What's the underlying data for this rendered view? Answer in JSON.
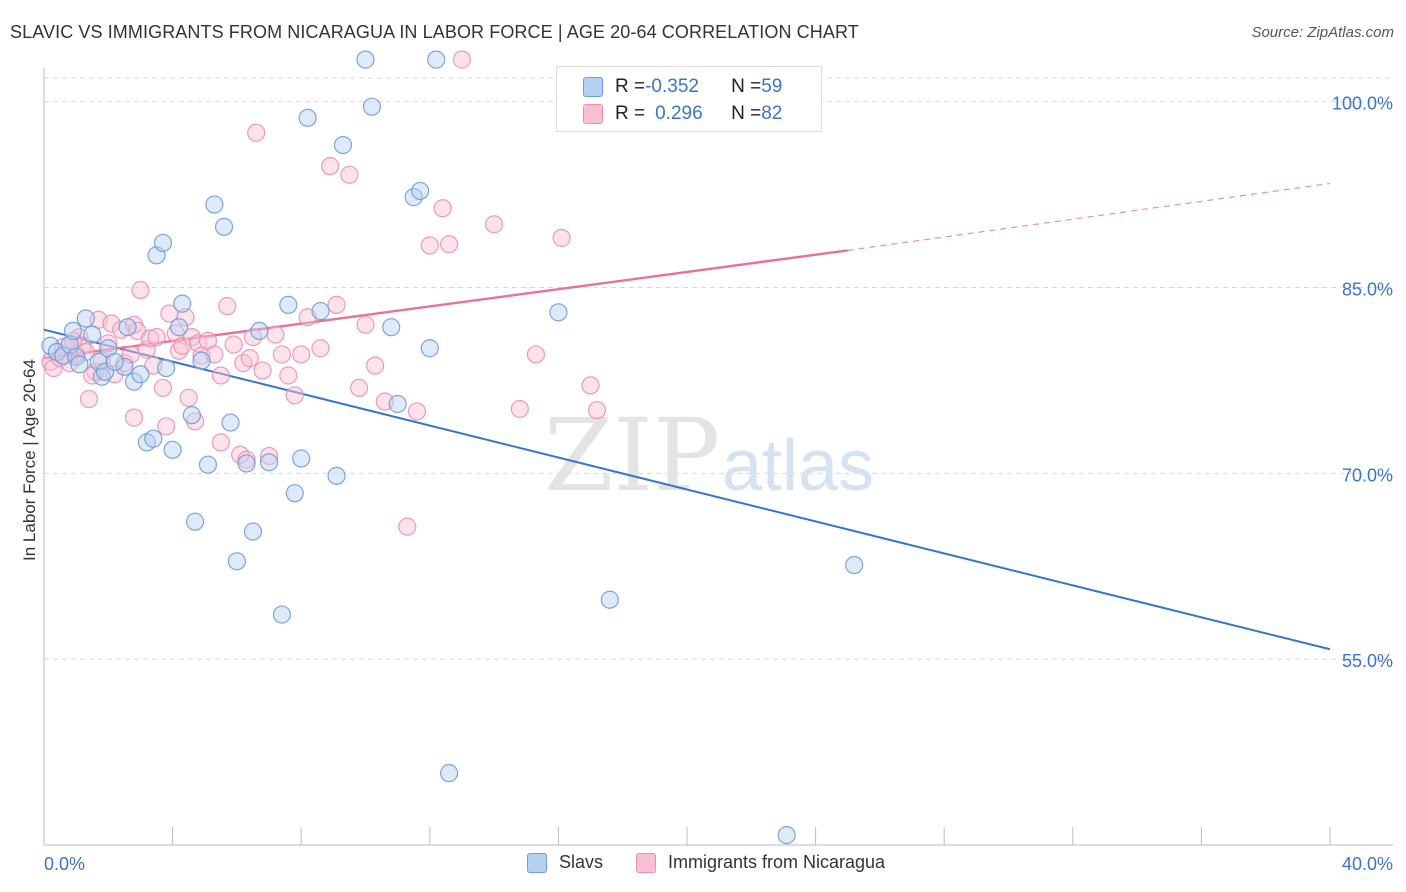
{
  "title": "SLAVIC VS IMMIGRANTS FROM NICARAGUA IN LABOR FORCE | AGE 20-64 CORRELATION CHART",
  "source": "Source: ZipAtlas.com",
  "watermark": {
    "zip": "ZIP",
    "atlas": "atlas"
  },
  "legend": {
    "rows": [
      {
        "r_label": "R = ",
        "r_value": "-0.352",
        "n_label": "N = ",
        "n_value": "59"
      },
      {
        "r_label": "R = ",
        "r_value": "0.296",
        "n_label": "N = ",
        "n_value": "82"
      }
    ]
  },
  "colors": {
    "slavs_fill": "#b8d0f0",
    "slavs_stroke": "#6b9be0",
    "slavs_line": "#3a74c8",
    "nic_fill": "#f8c0d2",
    "nic_stroke": "#ec8fae",
    "nic_line": "#e8709a",
    "axis_text": "#3a74c8",
    "grid": "#d8d8d8"
  },
  "chart_data": {
    "type": "scatter",
    "title": "SLAVIC VS IMMIGRANTS FROM NICARAGUA IN LABOR FORCE | AGE 20-64 CORRELATION CHART",
    "xlabel": "",
    "ylabel": "In Labor Force | Age 20-64",
    "xlim": [
      0,
      40
    ],
    "ylim": [
      40,
      102.4
    ],
    "x_tick_labels": [
      "0.0%",
      "40.0%"
    ],
    "y_ticks": [
      55,
      70,
      85,
      100
    ],
    "y_tick_labels": [
      "55.0%",
      "70.0%",
      "85.0%",
      "100.0%"
    ],
    "grid": "horizontal dashed",
    "legend_position": "top-center",
    "series": [
      {
        "name": "Slavs",
        "color": "#6b9be0",
        "trend": {
          "x": [
            0,
            40
          ],
          "y": [
            81.6,
            55.8
          ]
        },
        "points": [
          [
            0.2,
            80.3
          ],
          [
            0.4,
            79.8
          ],
          [
            0.6,
            79.5
          ],
          [
            0.8,
            80.4
          ],
          [
            1.0,
            79.4
          ],
          [
            1.1,
            78.8
          ],
          [
            0.9,
            81.5
          ],
          [
            1.3,
            82.5
          ],
          [
            1.5,
            81.2
          ],
          [
            1.7,
            79.0
          ],
          [
            1.8,
            77.8
          ],
          [
            1.9,
            78.2
          ],
          [
            2.0,
            80.1
          ],
          [
            2.5,
            78.6
          ],
          [
            2.6,
            81.8
          ],
          [
            2.8,
            77.4
          ],
          [
            3.2,
            72.5
          ],
          [
            3.4,
            72.8
          ],
          [
            3.5,
            87.6
          ],
          [
            3.7,
            88.6
          ],
          [
            3.8,
            78.5
          ],
          [
            4.0,
            71.9
          ],
          [
            4.2,
            81.8
          ],
          [
            4.3,
            83.7
          ],
          [
            4.6,
            74.7
          ],
          [
            4.7,
            66.1
          ],
          [
            4.9,
            79.1
          ],
          [
            5.1,
            70.7
          ],
          [
            5.3,
            91.7
          ],
          [
            5.6,
            89.9
          ],
          [
            5.8,
            74.1
          ],
          [
            6.0,
            62.9
          ],
          [
            6.3,
            70.8
          ],
          [
            6.5,
            65.3
          ],
          [
            6.7,
            81.5
          ],
          [
            7.0,
            70.9
          ],
          [
            7.4,
            58.6
          ],
          [
            7.6,
            83.6
          ],
          [
            7.8,
            68.4
          ],
          [
            8.0,
            71.2
          ],
          [
            8.2,
            98.7
          ],
          [
            8.6,
            83.1
          ],
          [
            9.1,
            69.8
          ],
          [
            9.3,
            96.5
          ],
          [
            10.0,
            103.4
          ],
          [
            10.2,
            99.6
          ],
          [
            10.8,
            81.8
          ],
          [
            11.0,
            75.6
          ],
          [
            11.5,
            92.3
          ],
          [
            11.7,
            92.8
          ],
          [
            12.0,
            80.1
          ],
          [
            12.2,
            103.4
          ],
          [
            12.6,
            45.8
          ],
          [
            16.0,
            83.0
          ],
          [
            17.6,
            59.8
          ],
          [
            23.1,
            40.8
          ],
          [
            25.2,
            62.6
          ],
          [
            3.0,
            78.0
          ],
          [
            2.2,
            79.0
          ]
        ]
      },
      {
        "name": "Immigrants from Nicaragua",
        "color": "#ec8fae",
        "trend": {
          "x": [
            0,
            25
          ],
          "y": [
            79.3,
            88.0
          ]
        },
        "trend_dashed": {
          "x": [
            25,
            40
          ],
          "y": [
            88.0,
            93.4
          ]
        },
        "points": [
          [
            0.2,
            79.0
          ],
          [
            0.3,
            78.5
          ],
          [
            0.5,
            79.3
          ],
          [
            0.6,
            80.2
          ],
          [
            0.8,
            78.9
          ],
          [
            1.0,
            79.6
          ],
          [
            1.1,
            81.0
          ],
          [
            1.2,
            80.3
          ],
          [
            1.3,
            79.8
          ],
          [
            1.4,
            76.0
          ],
          [
            1.6,
            78.2
          ],
          [
            1.7,
            82.4
          ],
          [
            1.8,
            79.1
          ],
          [
            2.0,
            80.5
          ],
          [
            2.1,
            82.1
          ],
          [
            2.2,
            78.0
          ],
          [
            2.4,
            81.6
          ],
          [
            2.5,
            78.9
          ],
          [
            2.7,
            79.6
          ],
          [
            2.8,
            82.0
          ],
          [
            2.9,
            81.5
          ],
          [
            3.0,
            84.8
          ],
          [
            3.2,
            80.0
          ],
          [
            3.3,
            80.9
          ],
          [
            3.4,
            78.7
          ],
          [
            3.5,
            81.0
          ],
          [
            3.7,
            76.9
          ],
          [
            3.9,
            82.9
          ],
          [
            4.1,
            81.3
          ],
          [
            4.2,
            79.9
          ],
          [
            4.3,
            80.3
          ],
          [
            4.4,
            82.6
          ],
          [
            4.6,
            81.0
          ],
          [
            4.7,
            74.2
          ],
          [
            4.8,
            80.5
          ],
          [
            4.9,
            79.5
          ],
          [
            5.1,
            80.7
          ],
          [
            5.3,
            79.6
          ],
          [
            5.5,
            77.9
          ],
          [
            5.7,
            83.5
          ],
          [
            5.9,
            80.4
          ],
          [
            6.1,
            71.5
          ],
          [
            6.2,
            78.9
          ],
          [
            6.4,
            79.3
          ],
          [
            6.5,
            81.0
          ],
          [
            6.6,
            97.5
          ],
          [
            6.8,
            78.3
          ],
          [
            7.0,
            71.4
          ],
          [
            7.2,
            81.2
          ],
          [
            7.4,
            79.6
          ],
          [
            7.6,
            77.9
          ],
          [
            7.8,
            76.3
          ],
          [
            8.0,
            79.6
          ],
          [
            8.2,
            82.6
          ],
          [
            8.6,
            80.1
          ],
          [
            8.9,
            94.8
          ],
          [
            9.1,
            83.6
          ],
          [
            9.5,
            94.1
          ],
          [
            9.8,
            76.9
          ],
          [
            10.0,
            82.0
          ],
          [
            10.3,
            78.7
          ],
          [
            10.6,
            75.8
          ],
          [
            11.3,
            65.7
          ],
          [
            11.6,
            75.0
          ],
          [
            12.0,
            88.4
          ],
          [
            12.4,
            91.4
          ],
          [
            12.6,
            88.5
          ],
          [
            13.0,
            103.4
          ],
          [
            14.0,
            90.1
          ],
          [
            14.8,
            75.2
          ],
          [
            15.3,
            79.6
          ],
          [
            16.1,
            89.0
          ],
          [
            17.0,
            77.1
          ],
          [
            17.2,
            75.1
          ],
          [
            20.7,
            99.5
          ],
          [
            6.3,
            71.1
          ],
          [
            2.8,
            74.5
          ],
          [
            3.8,
            73.8
          ],
          [
            5.5,
            72.5
          ],
          [
            4.5,
            76.1
          ],
          [
            1.5,
            77.9
          ],
          [
            0.9,
            80.7
          ]
        ]
      }
    ]
  },
  "bottom_legend": [
    {
      "label": "Slavs"
    },
    {
      "label": "Immigrants from Nicaragua"
    }
  ]
}
